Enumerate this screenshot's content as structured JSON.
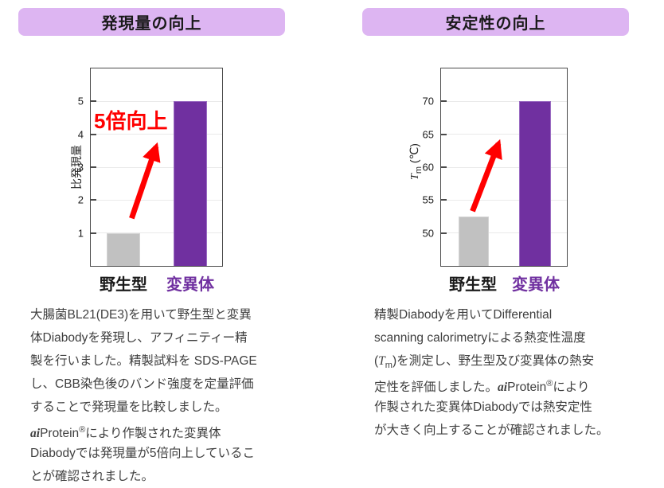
{
  "colors": {
    "header_bg": "#DDB5F2",
    "header_text": "#1A1A1A",
    "bar_gray": "#C1C1C1",
    "bar_purple": "#7030A0",
    "mutant_label_purple": "#7030A0",
    "accent_red": "#FF0000",
    "body_text": "#3F3F3F",
    "axis": "#4A4A4A",
    "gridline": "#EAEAEA",
    "background": "#FFFFFF"
  },
  "left_panel": {
    "header": "発現量の向上",
    "paragraph": {
      "line1": "大腸菌BL21(DE3)を用いて野生型と変異",
      "line2": "体Diabodyを発現し、アフィニティー精",
      "line3": "製を行いました。精製試料を SDS-PAGE",
      "line4": "し、CBB染色後のバンド強度を定量評価",
      "line5": "することで発現量を比較しました。",
      "line6_brand": "ai",
      "line6_product": "Protein",
      "line6_reg": "®",
      "line6_rest": "により作製された変異体",
      "line7": "Diabodyでは発現量が5倍向上しているこ",
      "line8": "とが確認されました。"
    }
  },
  "right_panel": {
    "header": "安定性の向上",
    "ylabel_T": "T",
    "ylabel_sub": "m",
    "ylabel_rest": " (℃)",
    "paragraph": {
      "line1": "精製Diabodyを用いてDifferential",
      "line2": "scanning calorimetryによる熱変性温度",
      "line3_open": "(",
      "line3_T": "T",
      "line3_sub": "m",
      "line3_rest": ")を測定し、野生型及び変異体の熱安",
      "line4_pre": "定性を評価しました。",
      "line4_brand": "ai",
      "line4_product": "Protein",
      "line4_reg": "®",
      "line4_rest": "により",
      "line5": "作製された変異体Diabodyでは熱安定性",
      "line6": "が大きく向上することが確認されました。"
    }
  },
  "chart_data": [
    {
      "type": "bar",
      "title": "発現量の向上",
      "categories": [
        "野生型",
        "変異体"
      ],
      "values": [
        1,
        5
      ],
      "bar_colors": [
        "#C1C1C1",
        "#7030A0"
      ],
      "xlabel": "",
      "ylabel": "比発現量",
      "ylim": [
        0,
        6
      ],
      "yticks": [
        1,
        2,
        3,
        4,
        5
      ],
      "grid": true,
      "legend": false,
      "annotation": {
        "text": "5倍向上",
        "color": "#FF0000",
        "arrow": "thick red arrow from wild-type bar up toward mutant bar"
      }
    },
    {
      "type": "bar",
      "title": "安定性の向上",
      "categories": [
        "野生型",
        "変異体"
      ],
      "values": [
        52.5,
        70
      ],
      "bar_colors": [
        "#C1C1C1",
        "#7030A0"
      ],
      "xlabel": "",
      "ylabel": "Tm (℃)",
      "ylim": [
        45,
        75
      ],
      "yticks": [
        50,
        55,
        60,
        65,
        70
      ],
      "grid": true,
      "legend": false,
      "annotation": {
        "text": "",
        "color": "#FF0000",
        "arrow": "thick red arrow from wild-type bar up toward mutant bar"
      }
    }
  ]
}
